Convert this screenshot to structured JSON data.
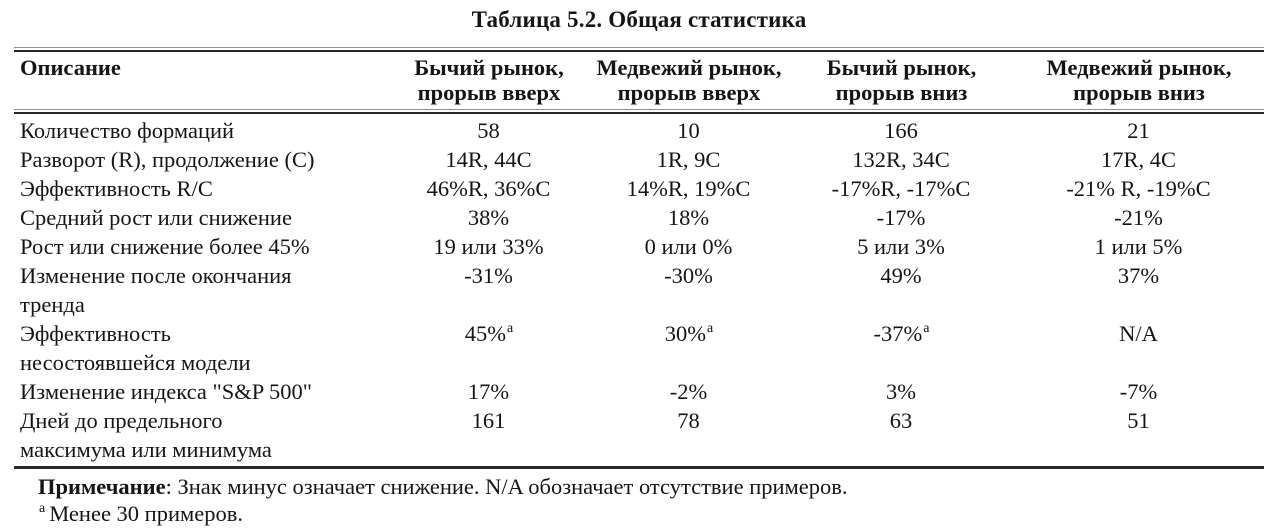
{
  "title": "Таблица 5.2. Общая статистика",
  "table": {
    "headers": [
      {
        "line1": "Описание",
        "line2": ""
      },
      {
        "line1": "Бычий рынок,",
        "line2": "прорыв вверх"
      },
      {
        "line1": "Медвежий рынок,",
        "line2": "прорыв вверх"
      },
      {
        "line1": "Бычий рынок,",
        "line2": "прорыв вниз"
      },
      {
        "line1": "Медвежий рынок,",
        "line2": "прорыв вниз"
      }
    ],
    "rows": [
      {
        "label": "Количество формаций",
        "label2": "",
        "values": [
          "58",
          "10",
          "166",
          "21"
        ]
      },
      {
        "label": "Разворот (R), продолжение (C)",
        "label2": "",
        "values": [
          "14R, 44C",
          "1R, 9C",
          "132R, 34C",
          "17R, 4C"
        ]
      },
      {
        "label": "Эффективность R/C",
        "label2": "",
        "values": [
          "46%R, 36%C",
          "14%R, 19%C",
          "-17%R, -17%C",
          "-21% R, -19%C"
        ]
      },
      {
        "label": "Средний рост или снижение",
        "label2": "",
        "values": [
          "38%",
          "18%",
          "-17%",
          "-21%"
        ]
      },
      {
        "label": "Рост или снижение более 45%",
        "label2": "",
        "values": [
          "19 или 33%",
          "0 или 0%",
          "5 или 3%",
          "1 или 5%"
        ]
      },
      {
        "label": "Изменение после окончания",
        "label2": "тренда",
        "values": [
          "-31%",
          "-30%",
          "49%",
          "37%"
        ]
      },
      {
        "label": "Эффективность",
        "label2": "несостоявшейся модели",
        "values": [
          "45%",
          "30%",
          "-37%",
          "N/A"
        ],
        "sups": [
          "а",
          "а",
          "а",
          ""
        ]
      },
      {
        "label": "Изменение индекса \"S&P 500\"",
        "label2": "",
        "values": [
          "17%",
          "-2%",
          "3%",
          "-7%"
        ]
      },
      {
        "label": "Дней до предельного",
        "label2": "максимума или минимума",
        "values": [
          "161",
          "78",
          "63",
          "51"
        ]
      }
    ]
  },
  "notes": {
    "note_label": "Примечание",
    "note_text": ": Знак минус означает снижение. N/A обозначает отсутствие примеров.",
    "footnote_marker": "а",
    "footnote_text": "Менее 30 примеров."
  }
}
